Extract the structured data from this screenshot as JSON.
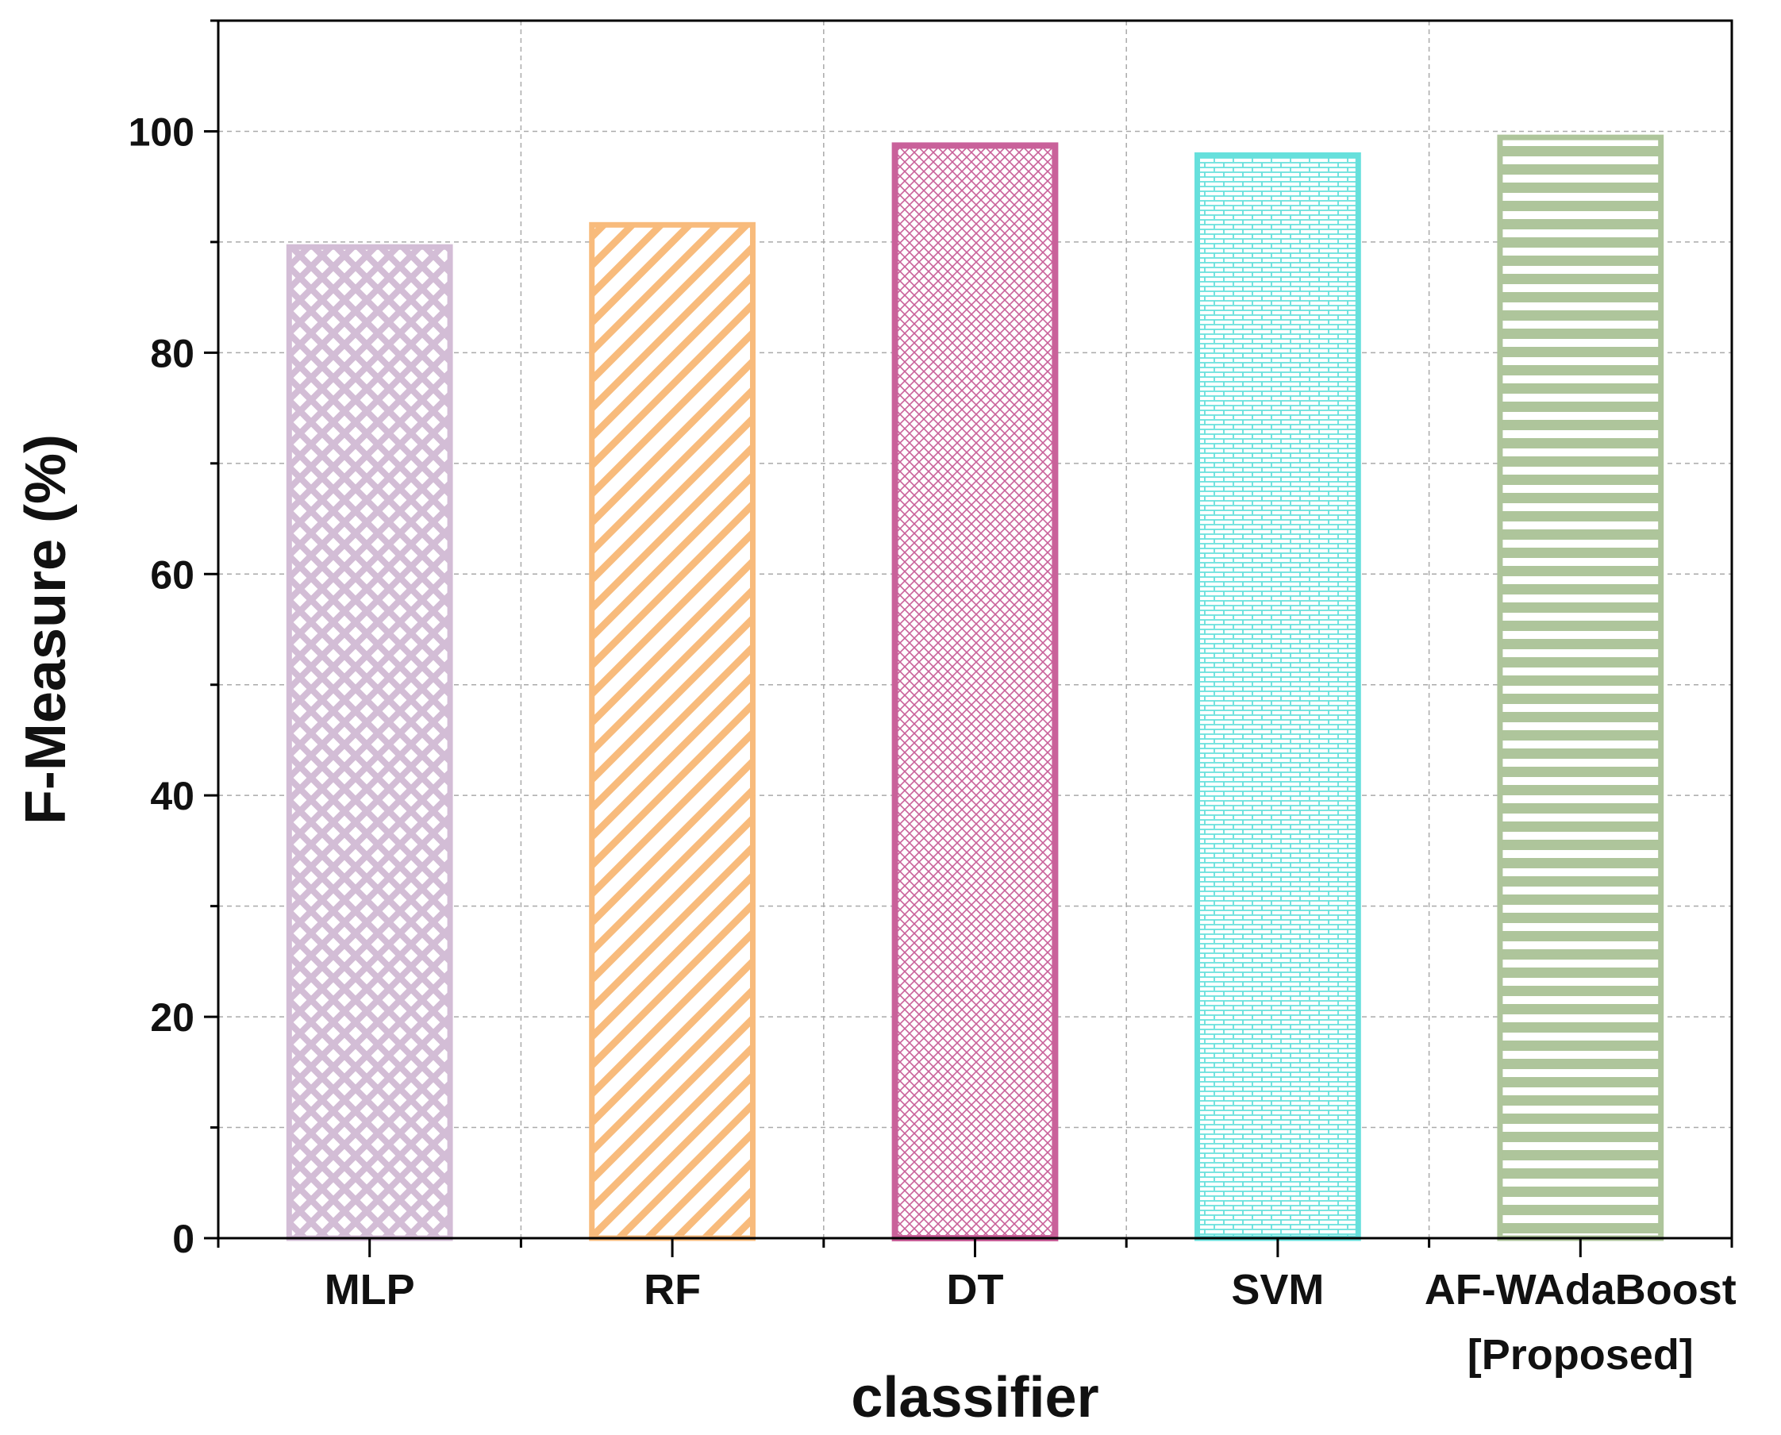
{
  "chart_data": {
    "type": "bar",
    "title": "",
    "xlabel": "classifier",
    "ylabel": "F-Measure (%)",
    "ylim": [
      0,
      110
    ],
    "yticks": [
      0,
      20,
      40,
      60,
      80,
      100
    ],
    "ytick_labels": [
      "0",
      "20",
      "40",
      "60",
      "80",
      "100"
    ],
    "grid": true,
    "categories": [
      "MLP",
      "RF",
      "DT",
      "SVM",
      "AF-WAdaBoost [Proposed]"
    ],
    "category_labels": [
      [
        "MLP"
      ],
      [
        "RF"
      ],
      [
        "DT"
      ],
      [
        "SVM"
      ],
      [
        "AF-WAdaBoost",
        "[Proposed]"
      ]
    ],
    "values": [
      89.8,
      91.8,
      99.0,
      98.1,
      99.7
    ],
    "colors": [
      "#d3bdd6",
      "#f8bb7c",
      "#c9619a",
      "#66e0dc",
      "#aec59b"
    ],
    "patterns": [
      "crosshatch",
      "diagonal",
      "fine-crosshatch",
      "brick",
      "horizontal"
    ]
  }
}
